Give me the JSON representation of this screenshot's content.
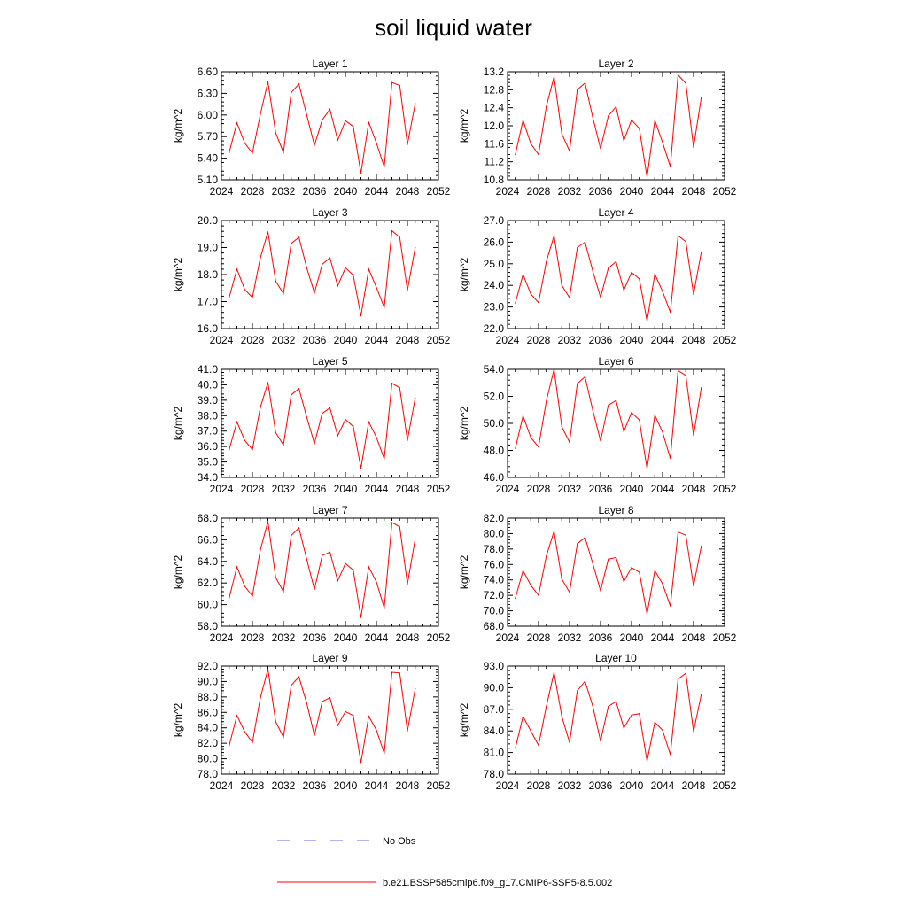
{
  "title": "soil liquid water",
  "colors": {
    "model": "#ff0000",
    "obs": "#6a6ad8",
    "axis": "#000000"
  },
  "legend": {
    "obs_label": "No Obs",
    "model_label": "b.e21.BSSP585cmip6.f09_g17.CMIP6-SSP5-8.5.002"
  },
  "chart_data": [
    {
      "type": "line",
      "title": "Layer 1",
      "ylabel": "kg/m^2",
      "xlim": [
        2024,
        2052
      ],
      "xticks": [
        "2024",
        "2028",
        "2032",
        "2036",
        "2040",
        "2044",
        "2048",
        "2052"
      ],
      "ylim": [
        5.1,
        6.6
      ],
      "yticks": [
        "5.10",
        "5.40",
        "5.70",
        "6.00",
        "6.30",
        "6.60"
      ],
      "x": [
        2025,
        2026,
        2027,
        2028,
        2029,
        2030,
        2031,
        2032,
        2033,
        2034,
        2035,
        2036,
        2037,
        2038,
        2039,
        2040,
        2041,
        2042,
        2043,
        2044,
        2045,
        2046,
        2047,
        2048,
        2049
      ],
      "series": [
        {
          "name": "b.e21.BSSP585cmip6.f09_g17.CMIP6-SSP5-8.5.002",
          "values": [
            5.48,
            5.89,
            5.61,
            5.47,
            6.0,
            6.46,
            5.75,
            5.48,
            6.31,
            6.43,
            6.0,
            5.58,
            5.93,
            6.08,
            5.65,
            5.92,
            5.84,
            5.19,
            5.9,
            5.61,
            5.28,
            6.45,
            6.41,
            5.59,
            6.16
          ]
        }
      ]
    },
    {
      "type": "line",
      "title": "Layer 2",
      "ylabel": "kg/m^2",
      "xlim": [
        2024,
        2052
      ],
      "xticks": [
        "2024",
        "2028",
        "2032",
        "2036",
        "2040",
        "2044",
        "2048",
        "2052"
      ],
      "ylim": [
        10.8,
        13.2
      ],
      "yticks": [
        "10.8",
        "11.2",
        "11.6",
        "12.0",
        "12.4",
        "12.8",
        "13.2"
      ],
      "x": [
        2025,
        2026,
        2027,
        2028,
        2029,
        2030,
        2031,
        2032,
        2033,
        2034,
        2035,
        2036,
        2037,
        2038,
        2039,
        2040,
        2041,
        2042,
        2043,
        2044,
        2045,
        2046,
        2047,
        2048,
        2049
      ],
      "series": [
        {
          "name": "b.e21.BSSP585cmip6.f09_g17.CMIP6-SSP5-8.5.002",
          "values": [
            11.36,
            12.12,
            11.6,
            11.36,
            12.43,
            13.09,
            11.82,
            11.44,
            12.8,
            12.95,
            12.18,
            11.49,
            12.22,
            12.42,
            11.67,
            12.13,
            11.94,
            10.86,
            12.12,
            11.63,
            11.09,
            13.13,
            12.94,
            11.52,
            12.64
          ]
        }
      ]
    },
    {
      "type": "line",
      "title": "Layer 3",
      "ylabel": "kg/m^2",
      "xlim": [
        2024,
        2052
      ],
      "xticks": [
        "2024",
        "2028",
        "2032",
        "2036",
        "2040",
        "2044",
        "2048",
        "2052"
      ],
      "ylim": [
        16.0,
        20.0
      ],
      "yticks": [
        "16.0",
        "17.0",
        "18.0",
        "19.0",
        "20.0"
      ],
      "x": [
        2025,
        2026,
        2027,
        2028,
        2029,
        2030,
        2031,
        2032,
        2033,
        2034,
        2035,
        2036,
        2037,
        2038,
        2039,
        2040,
        2041,
        2042,
        2043,
        2044,
        2045,
        2046,
        2047,
        2048,
        2049
      ],
      "series": [
        {
          "name": "b.e21.BSSP585cmip6.f09_g17.CMIP6-SSP5-8.5.002",
          "values": [
            17.15,
            18.2,
            17.45,
            17.15,
            18.6,
            19.58,
            17.75,
            17.3,
            19.15,
            19.38,
            18.25,
            17.32,
            18.38,
            18.62,
            17.58,
            18.25,
            17.98,
            16.47,
            18.2,
            17.52,
            16.78,
            19.62,
            19.38,
            17.42,
            19.0
          ]
        }
      ]
    },
    {
      "type": "line",
      "title": "Layer 4",
      "ylabel": "kg/m^2",
      "xlim": [
        2024,
        2052
      ],
      "xticks": [
        "2024",
        "2028",
        "2032",
        "2036",
        "2040",
        "2044",
        "2048",
        "2052"
      ],
      "ylim": [
        22.0,
        27.0
      ],
      "yticks": [
        "22.0",
        "23.0",
        "24.0",
        "25.0",
        "26.0",
        "27.0"
      ],
      "x": [
        2025,
        2026,
        2027,
        2028,
        2029,
        2030,
        2031,
        2032,
        2033,
        2034,
        2035,
        2036,
        2037,
        2038,
        2039,
        2040,
        2041,
        2042,
        2043,
        2044,
        2045,
        2046,
        2047,
        2048,
        2049
      ],
      "series": [
        {
          "name": "b.e21.BSSP585cmip6.f09_g17.CMIP6-SSP5-8.5.002",
          "values": [
            23.18,
            24.5,
            23.6,
            23.2,
            25.1,
            26.3,
            24.0,
            23.43,
            25.75,
            26.0,
            24.65,
            23.45,
            24.8,
            25.1,
            23.78,
            24.6,
            24.3,
            22.35,
            24.52,
            23.72,
            22.75,
            26.3,
            26.02,
            23.58,
            25.55
          ]
        }
      ]
    },
    {
      "type": "line",
      "title": "Layer 5",
      "ylabel": "kg/m^2",
      "xlim": [
        2024,
        2052
      ],
      "xticks": [
        "2024",
        "2028",
        "2032",
        "2036",
        "2040",
        "2044",
        "2048",
        "2052"
      ],
      "ylim": [
        34.0,
        41.0
      ],
      "yticks": [
        "34.0",
        "35.0",
        "36.0",
        "37.0",
        "38.0",
        "39.0",
        "40.0",
        "41.0"
      ],
      "x": [
        2025,
        2026,
        2027,
        2028,
        2029,
        2030,
        2031,
        2032,
        2033,
        2034,
        2035,
        2036,
        2037,
        2038,
        2039,
        2040,
        2041,
        2042,
        2043,
        2044,
        2045,
        2046,
        2047,
        2048,
        2049
      ],
      "series": [
        {
          "name": "b.e21.BSSP585cmip6.f09_g17.CMIP6-SSP5-8.5.002",
          "values": [
            35.8,
            37.6,
            36.4,
            35.8,
            38.5,
            40.15,
            36.9,
            36.1,
            39.35,
            39.75,
            37.9,
            36.2,
            38.15,
            38.5,
            36.7,
            37.75,
            37.3,
            34.6,
            37.6,
            36.6,
            35.2,
            40.1,
            39.8,
            36.4,
            39.15
          ]
        }
      ]
    },
    {
      "type": "line",
      "title": "Layer 6",
      "ylabel": "kg/m^2",
      "xlim": [
        2024,
        2052
      ],
      "xticks": [
        "2024",
        "2028",
        "2032",
        "2036",
        "2040",
        "2044",
        "2048",
        "2052"
      ],
      "ylim": [
        46.0,
        54.0
      ],
      "yticks": [
        "46.0",
        "48.0",
        "50.0",
        "52.0",
        "54.0"
      ],
      "x": [
        2025,
        2026,
        2027,
        2028,
        2029,
        2030,
        2031,
        2032,
        2033,
        2034,
        2035,
        2036,
        2037,
        2038,
        2039,
        2040,
        2041,
        2042,
        2043,
        2044,
        2045,
        2046,
        2047,
        2048,
        2049
      ],
      "series": [
        {
          "name": "b.e21.BSSP585cmip6.f09_g17.CMIP6-SSP5-8.5.002",
          "values": [
            48.15,
            50.55,
            48.95,
            48.25,
            51.65,
            54.0,
            49.75,
            48.6,
            52.95,
            53.45,
            50.95,
            48.7,
            51.35,
            51.7,
            49.4,
            50.8,
            50.25,
            46.65,
            50.6,
            49.35,
            47.4,
            53.9,
            53.55,
            49.1,
            52.65
          ]
        }
      ]
    },
    {
      "type": "line",
      "title": "Layer 7",
      "ylabel": "kg/m^2",
      "xlim": [
        2024,
        2052
      ],
      "xticks": [
        "2024",
        "2028",
        "2032",
        "2036",
        "2040",
        "2044",
        "2048",
        "2052"
      ],
      "ylim": [
        58.0,
        68.0
      ],
      "yticks": [
        "58.0",
        "60.0",
        "62.0",
        "64.0",
        "66.0",
        "68.0"
      ],
      "x": [
        2025,
        2026,
        2027,
        2028,
        2029,
        2030,
        2031,
        2032,
        2033,
        2034,
        2035,
        2036,
        2037,
        2038,
        2039,
        2040,
        2041,
        2042,
        2043,
        2044,
        2045,
        2046,
        2047,
        2048,
        2049
      ],
      "series": [
        {
          "name": "b.e21.BSSP585cmip6.f09_g17.CMIP6-SSP5-8.5.002",
          "values": [
            60.6,
            63.5,
            61.7,
            60.8,
            65.0,
            67.7,
            62.5,
            61.2,
            66.4,
            67.1,
            64.2,
            61.4,
            64.55,
            64.85,
            62.2,
            63.8,
            63.2,
            58.8,
            63.5,
            62.1,
            59.7,
            67.6,
            67.2,
            61.9,
            66.1
          ]
        }
      ]
    },
    {
      "type": "line",
      "title": "Layer 8",
      "ylabel": "kg/m^2",
      "xlim": [
        2024,
        2052
      ],
      "xticks": [
        "2024",
        "2028",
        "2032",
        "2036",
        "2040",
        "2044",
        "2048",
        "2052"
      ],
      "ylim": [
        68.0,
        82.0
      ],
      "yticks": [
        "68.0",
        "70.0",
        "72.0",
        "74.0",
        "76.0",
        "78.0",
        "80.0",
        "82.0"
      ],
      "x": [
        2025,
        2026,
        2027,
        2028,
        2029,
        2030,
        2031,
        2032,
        2033,
        2034,
        2035,
        2036,
        2037,
        2038,
        2039,
        2040,
        2041,
        2042,
        2043,
        2044,
        2045,
        2046,
        2047,
        2048,
        2049
      ],
      "series": [
        {
          "name": "b.e21.BSSP585cmip6.f09_g17.CMIP6-SSP5-8.5.002",
          "values": [
            71.6,
            75.2,
            73.3,
            72.0,
            77.1,
            80.3,
            74.1,
            72.4,
            78.7,
            79.5,
            76.1,
            72.6,
            76.7,
            76.9,
            73.8,
            75.6,
            75.0,
            69.6,
            75.2,
            73.5,
            70.6,
            80.2,
            79.8,
            73.2,
            78.4
          ]
        }
      ]
    },
    {
      "type": "line",
      "title": "Layer 9",
      "ylabel": "kg/m^2",
      "xlim": [
        2024,
        2052
      ],
      "xticks": [
        "2024",
        "2028",
        "2032",
        "2036",
        "2040",
        "2044",
        "2048",
        "2052"
      ],
      "ylim": [
        78.0,
        92.0
      ],
      "yticks": [
        "78.0",
        "80.0",
        "82.0",
        "84.0",
        "86.0",
        "88.0",
        "90.0",
        "92.0"
      ],
      "x": [
        2025,
        2026,
        2027,
        2028,
        2029,
        2030,
        2031,
        2032,
        2033,
        2034,
        2035,
        2036,
        2037,
        2038,
        2039,
        2040,
        2041,
        2042,
        2043,
        2044,
        2045,
        2046,
        2047,
        2048,
        2049
      ],
      "series": [
        {
          "name": "b.e21.BSSP585cmip6.f09_g17.CMIP6-SSP5-8.5.002",
          "values": [
            81.7,
            85.6,
            83.5,
            82.1,
            87.8,
            91.6,
            84.8,
            82.8,
            89.5,
            90.6,
            87.2,
            83.0,
            87.4,
            87.9,
            84.3,
            86.1,
            85.6,
            79.5,
            85.5,
            83.7,
            80.7,
            91.2,
            91.1,
            83.6,
            89.1
          ]
        }
      ]
    },
    {
      "type": "line",
      "title": "Layer 10",
      "ylabel": "kg/m^2",
      "xlim": [
        2024,
        2052
      ],
      "xticks": [
        "2024",
        "2028",
        "2032",
        "2036",
        "2040",
        "2044",
        "2048",
        "2052"
      ],
      "ylim": [
        78.0,
        93.0
      ],
      "yticks": [
        "78.0",
        "81.0",
        "84.0",
        "87.0",
        "90.0",
        "93.0"
      ],
      "x": [
        2025,
        2026,
        2027,
        2028,
        2029,
        2030,
        2031,
        2032,
        2033,
        2034,
        2035,
        2036,
        2037,
        2038,
        2039,
        2040,
        2041,
        2042,
        2043,
        2044,
        2045,
        2046,
        2047,
        2048,
        2049
      ],
      "series": [
        {
          "name": "b.e21.BSSP585cmip6.f09_g17.CMIP6-SSP5-8.5.002",
          "values": [
            81.6,
            86.0,
            84.0,
            82.0,
            87.4,
            92.1,
            86.0,
            82.4,
            89.6,
            90.9,
            87.4,
            82.6,
            87.4,
            88.1,
            84.4,
            86.2,
            86.4,
            79.8,
            85.2,
            84.1,
            80.7,
            91.2,
            92.0,
            83.9,
            89.1
          ]
        }
      ]
    }
  ]
}
